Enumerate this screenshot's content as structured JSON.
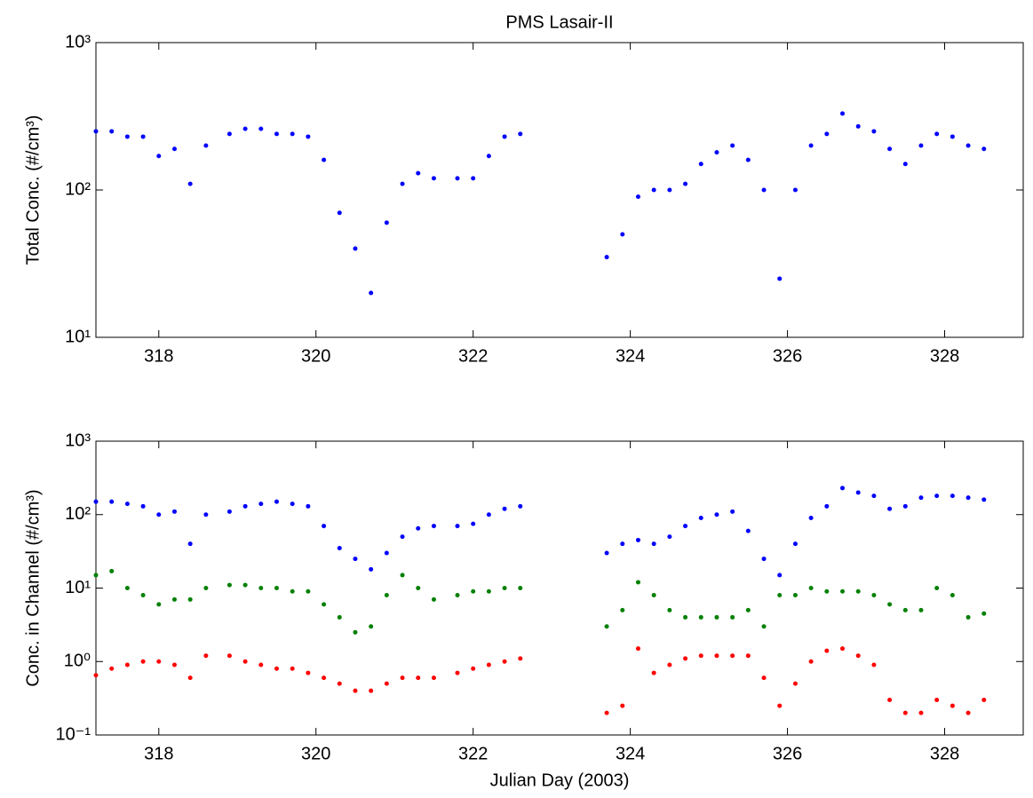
{
  "chart_data": [
    {
      "type": "scatter",
      "title": "PMS Lasair-II",
      "ylabel": "Total Conc. (#/cm³)",
      "log_y": true,
      "xlim": [
        317.2,
        329
      ],
      "xticks": [
        318,
        320,
        322,
        324,
        326,
        328
      ],
      "ylim": [
        10,
        1000
      ],
      "yticks": [
        {
          "value": 10,
          "label": "10¹"
        },
        {
          "value": 100,
          "label": "10²"
        },
        {
          "value": 1000,
          "label": "10³"
        }
      ],
      "x": [
        317.2,
        317.4,
        317.6,
        317.8,
        318.0,
        318.2,
        318.4,
        318.6,
        318.9,
        319.1,
        319.3,
        319.5,
        319.7,
        319.9,
        320.1,
        320.3,
        320.5,
        320.7,
        320.9,
        321.1,
        321.3,
        321.5,
        321.8,
        322.0,
        322.2,
        322.4,
        322.6,
        323.7,
        323.9,
        324.1,
        324.3,
        324.5,
        324.7,
        324.9,
        325.1,
        325.3,
        325.5,
        325.7,
        325.9,
        326.1,
        326.3,
        326.5,
        326.7,
        326.9,
        327.1,
        327.3,
        327.5,
        327.7,
        327.9,
        328.1,
        328.3,
        328.5
      ],
      "series": [
        {
          "color": "#0000ff",
          "values": [
            250,
            250,
            230,
            230,
            170,
            190,
            110,
            200,
            240,
            260,
            260,
            240,
            240,
            230,
            160,
            70,
            40,
            20,
            60,
            110,
            130,
            120,
            120,
            120,
            170,
            230,
            240,
            35,
            50,
            90,
            100,
            100,
            110,
            150,
            180,
            200,
            160,
            100,
            25,
            100,
            200,
            240,
            330,
            270,
            250,
            190,
            150,
            200,
            240,
            230,
            200,
            190
          ]
        }
      ]
    },
    {
      "type": "scatter",
      "ylabel": "Conc. in Channel (#/cm³)",
      "xlabel": "Julian Day (2003)",
      "log_y": true,
      "xlim": [
        317.2,
        329
      ],
      "xticks": [
        318,
        320,
        322,
        324,
        326,
        328
      ],
      "ylim": [
        0.1,
        1000
      ],
      "yticks": [
        {
          "value": 0.1,
          "label": "10⁻¹"
        },
        {
          "value": 1,
          "label": "10⁰"
        },
        {
          "value": 10,
          "label": "10¹"
        },
        {
          "value": 100,
          "label": "10²"
        },
        {
          "value": 1000,
          "label": "10³"
        }
      ],
      "x": [
        317.2,
        317.4,
        317.6,
        317.8,
        318.0,
        318.2,
        318.4,
        318.6,
        318.9,
        319.1,
        319.3,
        319.5,
        319.7,
        319.9,
        320.1,
        320.3,
        320.5,
        320.7,
        320.9,
        321.1,
        321.3,
        321.5,
        321.8,
        322.0,
        322.2,
        322.4,
        322.6,
        323.7,
        323.9,
        324.1,
        324.3,
        324.5,
        324.7,
        324.9,
        325.1,
        325.3,
        325.5,
        325.7,
        325.9,
        326.1,
        326.3,
        326.5,
        326.7,
        326.9,
        327.1,
        327.3,
        327.5,
        327.7,
        327.9,
        328.1,
        328.3,
        328.5
      ],
      "series": [
        {
          "color": "#0000ff",
          "values": [
            150,
            150,
            140,
            130,
            100,
            110,
            40,
            100,
            110,
            130,
            140,
            150,
            140,
            130,
            70,
            35,
            25,
            18,
            30,
            50,
            65,
            70,
            70,
            75,
            100,
            120,
            130,
            30,
            40,
            45,
            40,
            50,
            70,
            90,
            100,
            110,
            60,
            25,
            15,
            40,
            90,
            130,
            230,
            200,
            180,
            120,
            130,
            170,
            180,
            180,
            170,
            160
          ]
        },
        {
          "color": "#008000",
          "values": [
            15,
            17,
            10,
            8,
            6,
            7,
            7,
            10,
            11,
            11,
            10,
            10,
            9,
            9,
            6,
            4,
            2.5,
            3,
            8,
            15,
            10,
            7,
            8,
            9,
            9,
            10,
            10,
            3,
            5,
            12,
            8,
            5,
            4,
            4,
            4,
            4,
            5,
            3,
            8,
            8,
            10,
            9,
            9,
            9,
            8,
            6,
            5,
            5,
            10,
            8,
            4,
            4.5
          ]
        },
        {
          "color": "#ff0000",
          "values": [
            0.65,
            0.8,
            0.9,
            1.0,
            1.0,
            0.9,
            0.6,
            1.2,
            1.2,
            1.0,
            0.9,
            0.8,
            0.8,
            0.7,
            0.6,
            0.5,
            0.4,
            0.4,
            0.5,
            0.6,
            0.6,
            0.6,
            0.7,
            0.8,
            0.9,
            1.0,
            1.1,
            0.2,
            0.25,
            1.5,
            0.7,
            0.9,
            1.1,
            1.2,
            1.2,
            1.2,
            1.2,
            0.6,
            0.25,
            0.5,
            1.0,
            1.4,
            1.5,
            1.2,
            0.9,
            0.3,
            0.2,
            0.2,
            0.3,
            0.25,
            0.2,
            0.3
          ]
        }
      ]
    }
  ]
}
